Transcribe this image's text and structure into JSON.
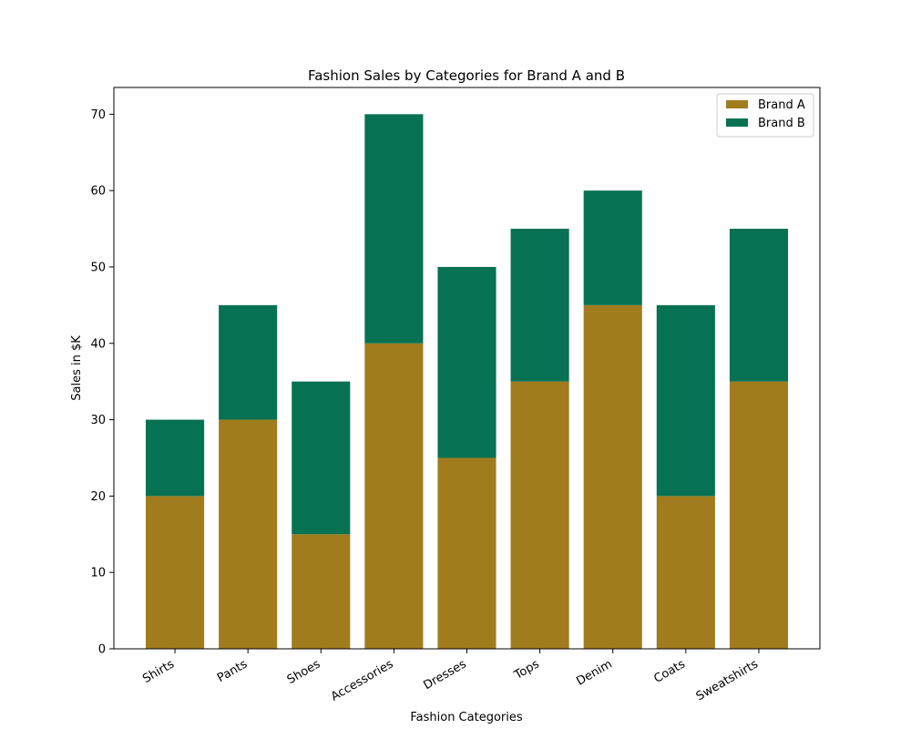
{
  "chart_data": {
    "type": "bar",
    "stacked": true,
    "title": "Fashion Sales by Categories for Brand A and B",
    "xlabel": "Fashion Categories",
    "ylabel": "Sales in $K",
    "categories": [
      "Shirts",
      "Pants",
      "Shoes",
      "Accessories",
      "Dresses",
      "Tops",
      "Denim",
      "Coats",
      "Sweatshirts"
    ],
    "series": [
      {
        "name": "Brand A",
        "color": "#A07C1E",
        "values": [
          20,
          30,
          15,
          40,
          25,
          35,
          45,
          20,
          35
        ]
      },
      {
        "name": "Brand B",
        "color": "#077153",
        "values": [
          10,
          15,
          20,
          30,
          25,
          20,
          15,
          25,
          20
        ]
      }
    ],
    "ylim": [
      0,
      73.5
    ],
    "yticks": [
      0,
      10,
      20,
      30,
      40,
      50,
      60,
      70
    ],
    "grid": false,
    "legend_position": "top-right"
  }
}
